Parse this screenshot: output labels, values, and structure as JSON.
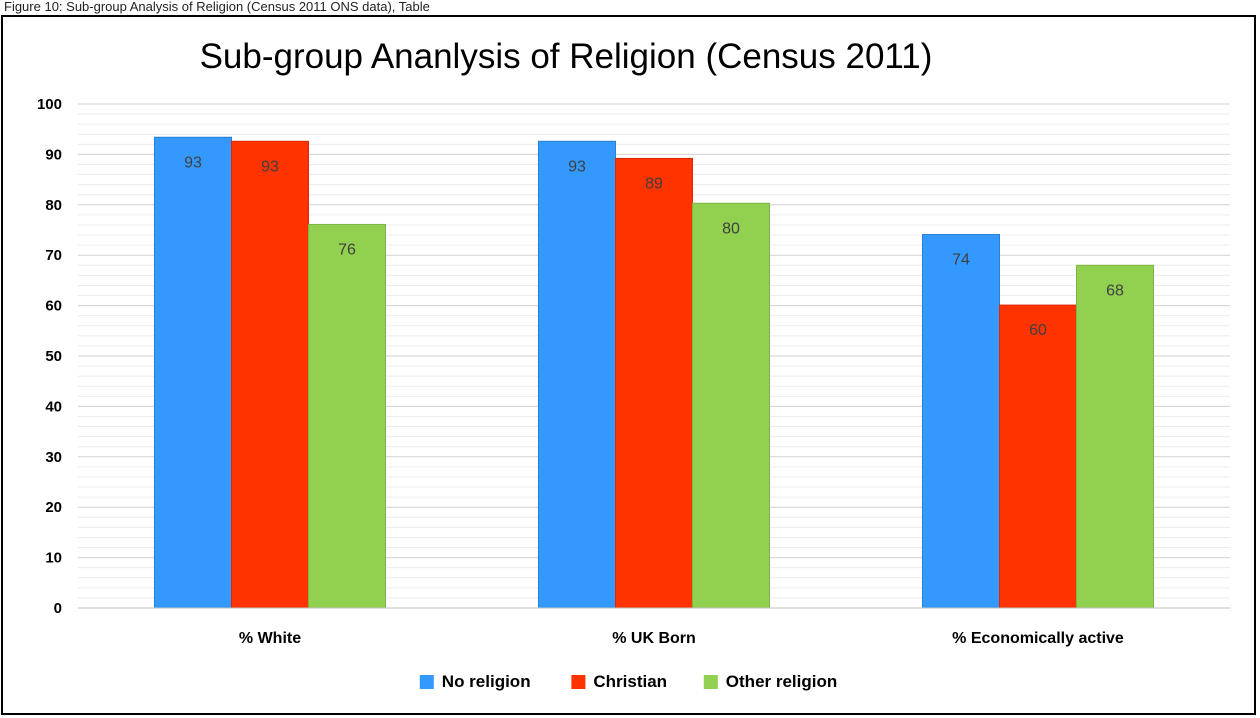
{
  "caption": "Figure 10: Sub-group Analysis of Religion (Census 2011 ONS data), Table",
  "chart_data": {
    "type": "bar",
    "title": "Sub-group Ananlysis of Religion (Census 2011)",
    "xlabel": "",
    "ylabel": "",
    "categories": [
      "% White",
      "% UK Born",
      "% Economically active"
    ],
    "series": [
      {
        "name": "No religion",
        "values": [
          93,
          93,
          74
        ],
        "exact": [
          93.4,
          92.6,
          74.1
        ],
        "color": "#3399FF"
      },
      {
        "name": "Christian",
        "values": [
          93,
          89,
          60
        ],
        "exact": [
          92.6,
          89.2,
          60.1
        ],
        "color": "#FF3300"
      },
      {
        "name": "Other religion",
        "values": [
          76,
          80,
          68
        ],
        "exact": [
          76.1,
          80.3,
          68.0
        ],
        "color": "#92D050"
      }
    ],
    "yticks": [
      0,
      10,
      20,
      30,
      40,
      50,
      60,
      70,
      80,
      90,
      100
    ],
    "ylim": [
      0,
      100
    ],
    "grid": true,
    "legend_position": "bottom"
  }
}
